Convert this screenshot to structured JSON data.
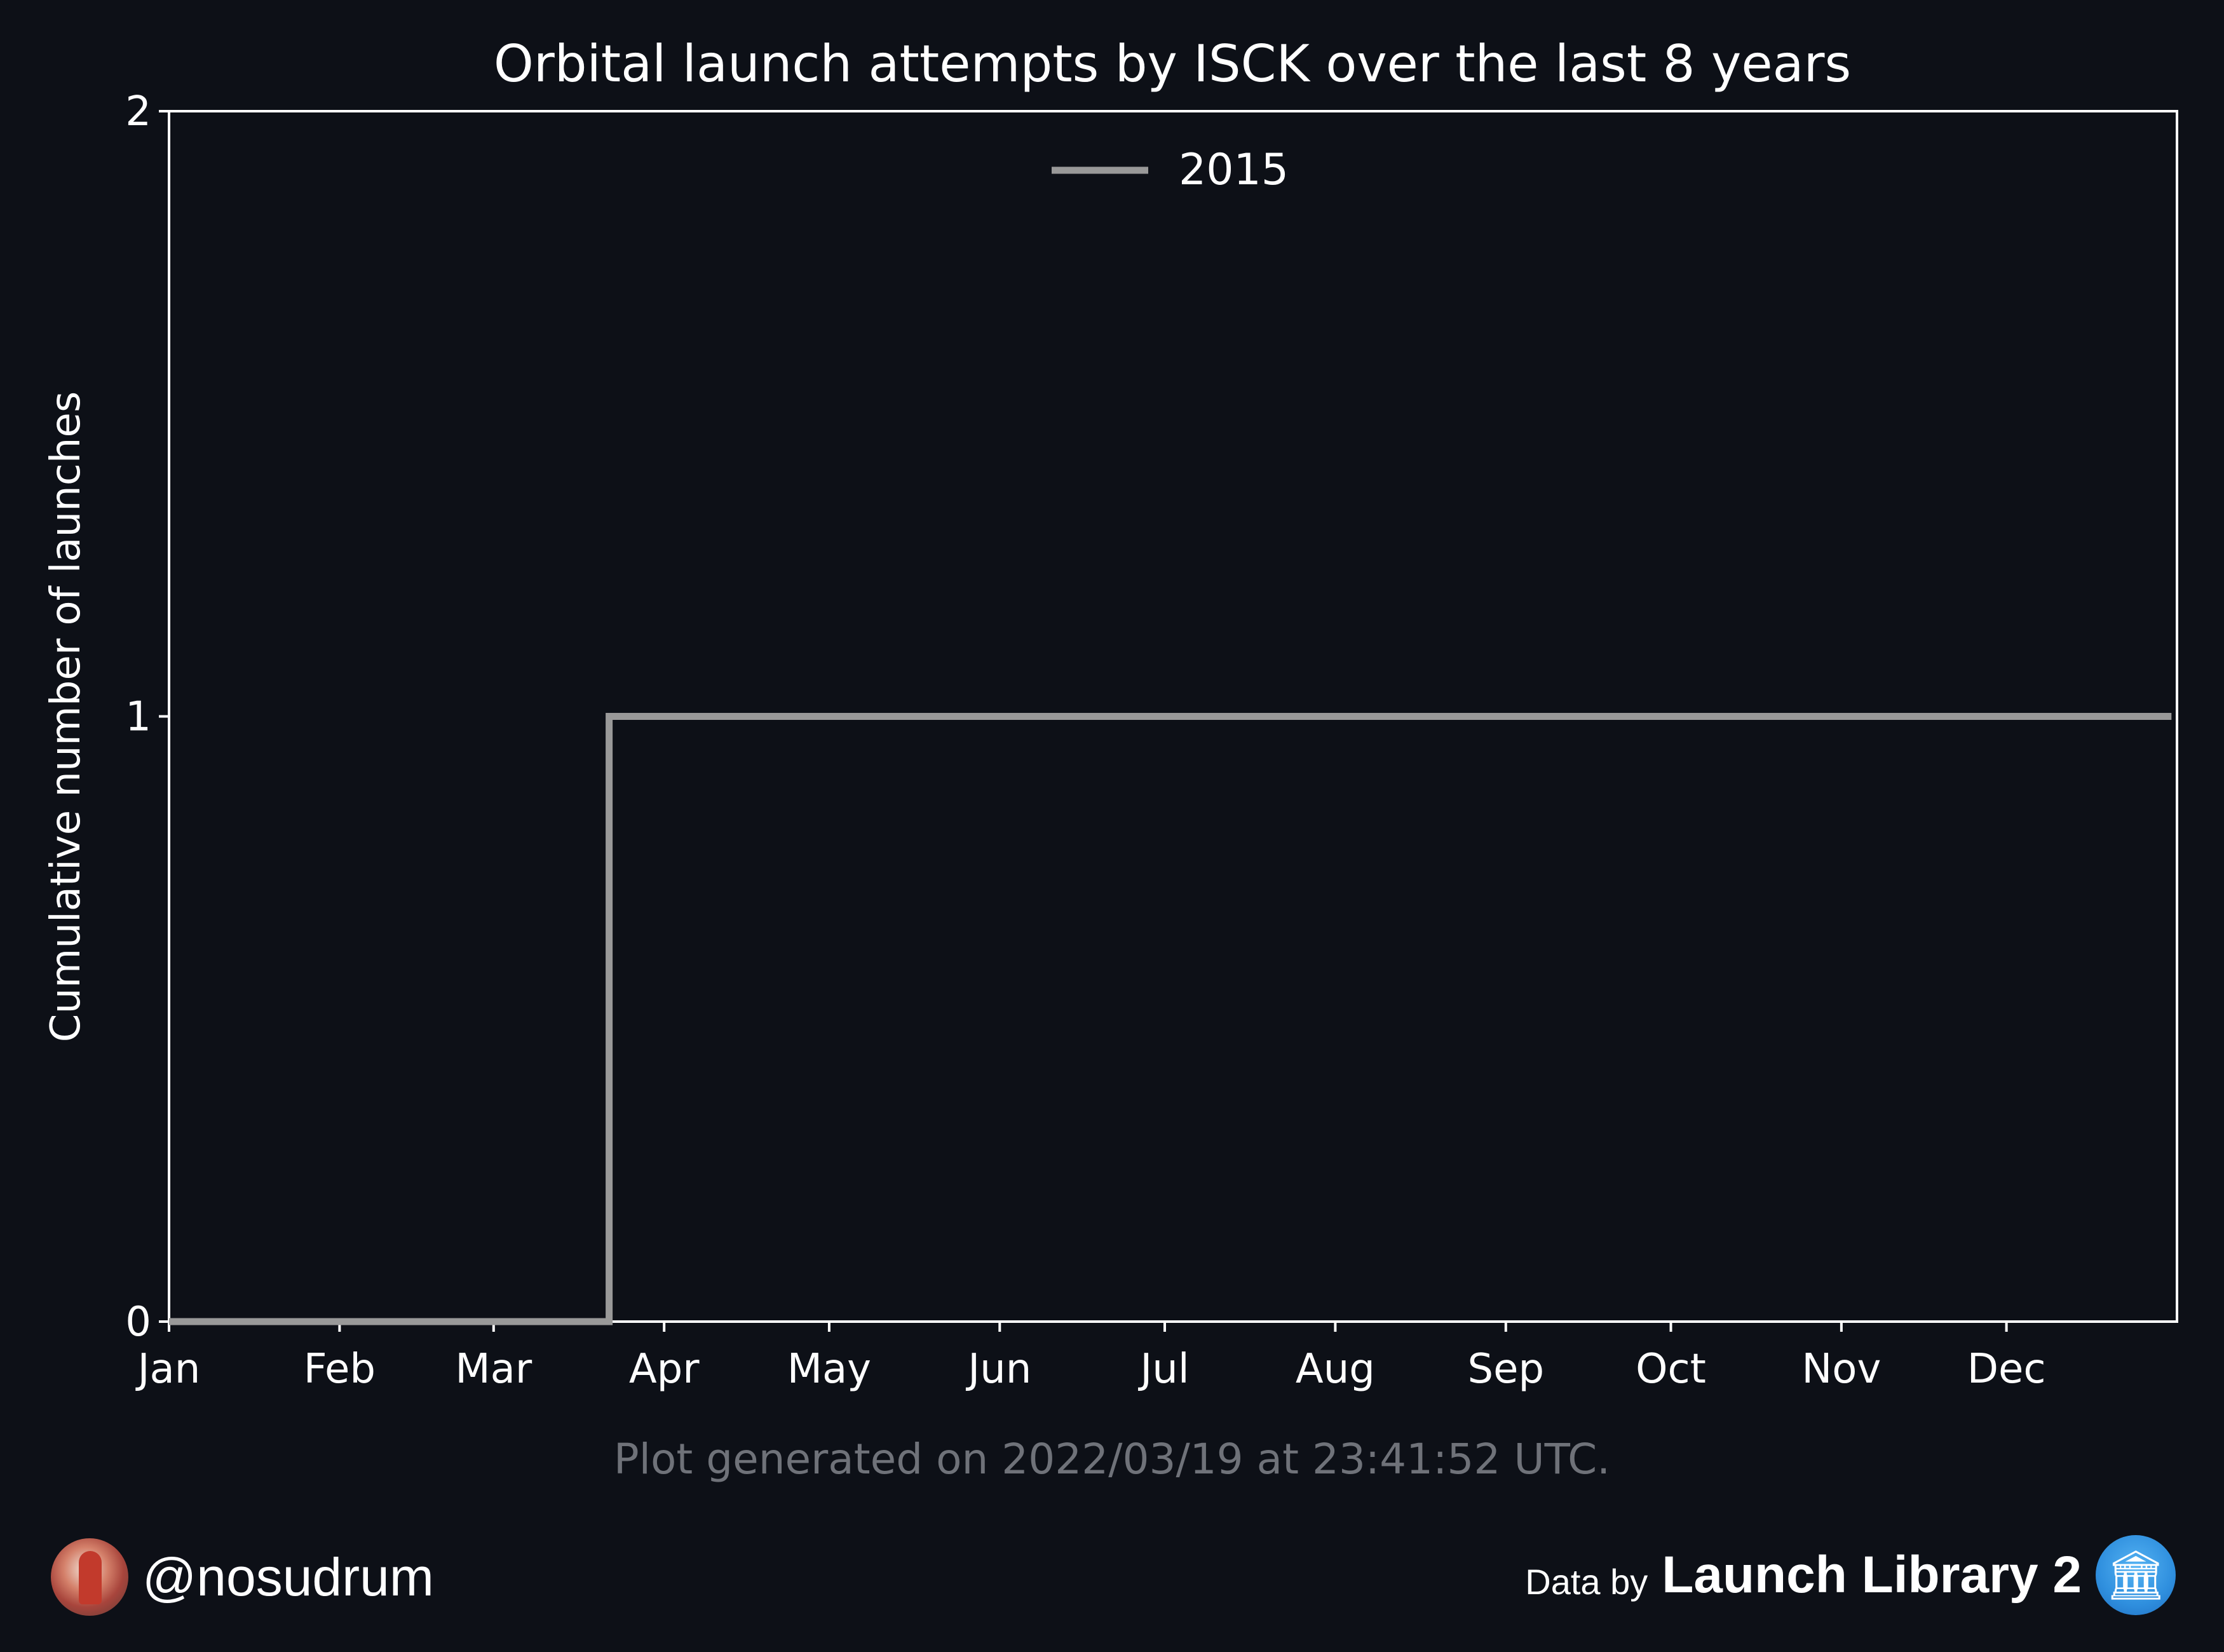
{
  "chart_data": {
    "type": "line",
    "step": true,
    "title": "Orbital launch attempts by ISCK over the last 8 years",
    "xlabel": "",
    "ylabel": "Cumulative number of launches",
    "x_ticks": [
      "Jan",
      "Feb",
      "Mar",
      "Apr",
      "May",
      "Jun",
      "Jul",
      "Aug",
      "Sep",
      "Oct",
      "Nov",
      "Dec"
    ],
    "xlim": [
      "Jan 1",
      "Dec 31"
    ],
    "ylim": [
      0,
      2
    ],
    "y_ticks": [
      "0",
      "1",
      "2"
    ],
    "grid": false,
    "legend_position": "top-center",
    "series": [
      {
        "name": "2015",
        "color": "#999999",
        "points": [
          {
            "x": "Jan 1",
            "y": 0
          },
          {
            "x": "Mar 22",
            "y": 0
          },
          {
            "x": "Mar 22",
            "y": 1
          },
          {
            "x": "Dec 31",
            "y": 1
          }
        ]
      }
    ]
  },
  "footer": {
    "generated_note": "Plot generated on 2022/03/19 at 23:41:52 UTC.",
    "handle": "@nosudrum",
    "data_by_label": "Data by",
    "source_name": "Launch Library 2",
    "avatar_icon": "astronaut-avatar",
    "source_icon": "building-columns-icon"
  },
  "colors": {
    "background": "#0d1017",
    "axes": "#ffffff",
    "note_text": "#6f7279",
    "brand_blue": "#2f8fde"
  }
}
